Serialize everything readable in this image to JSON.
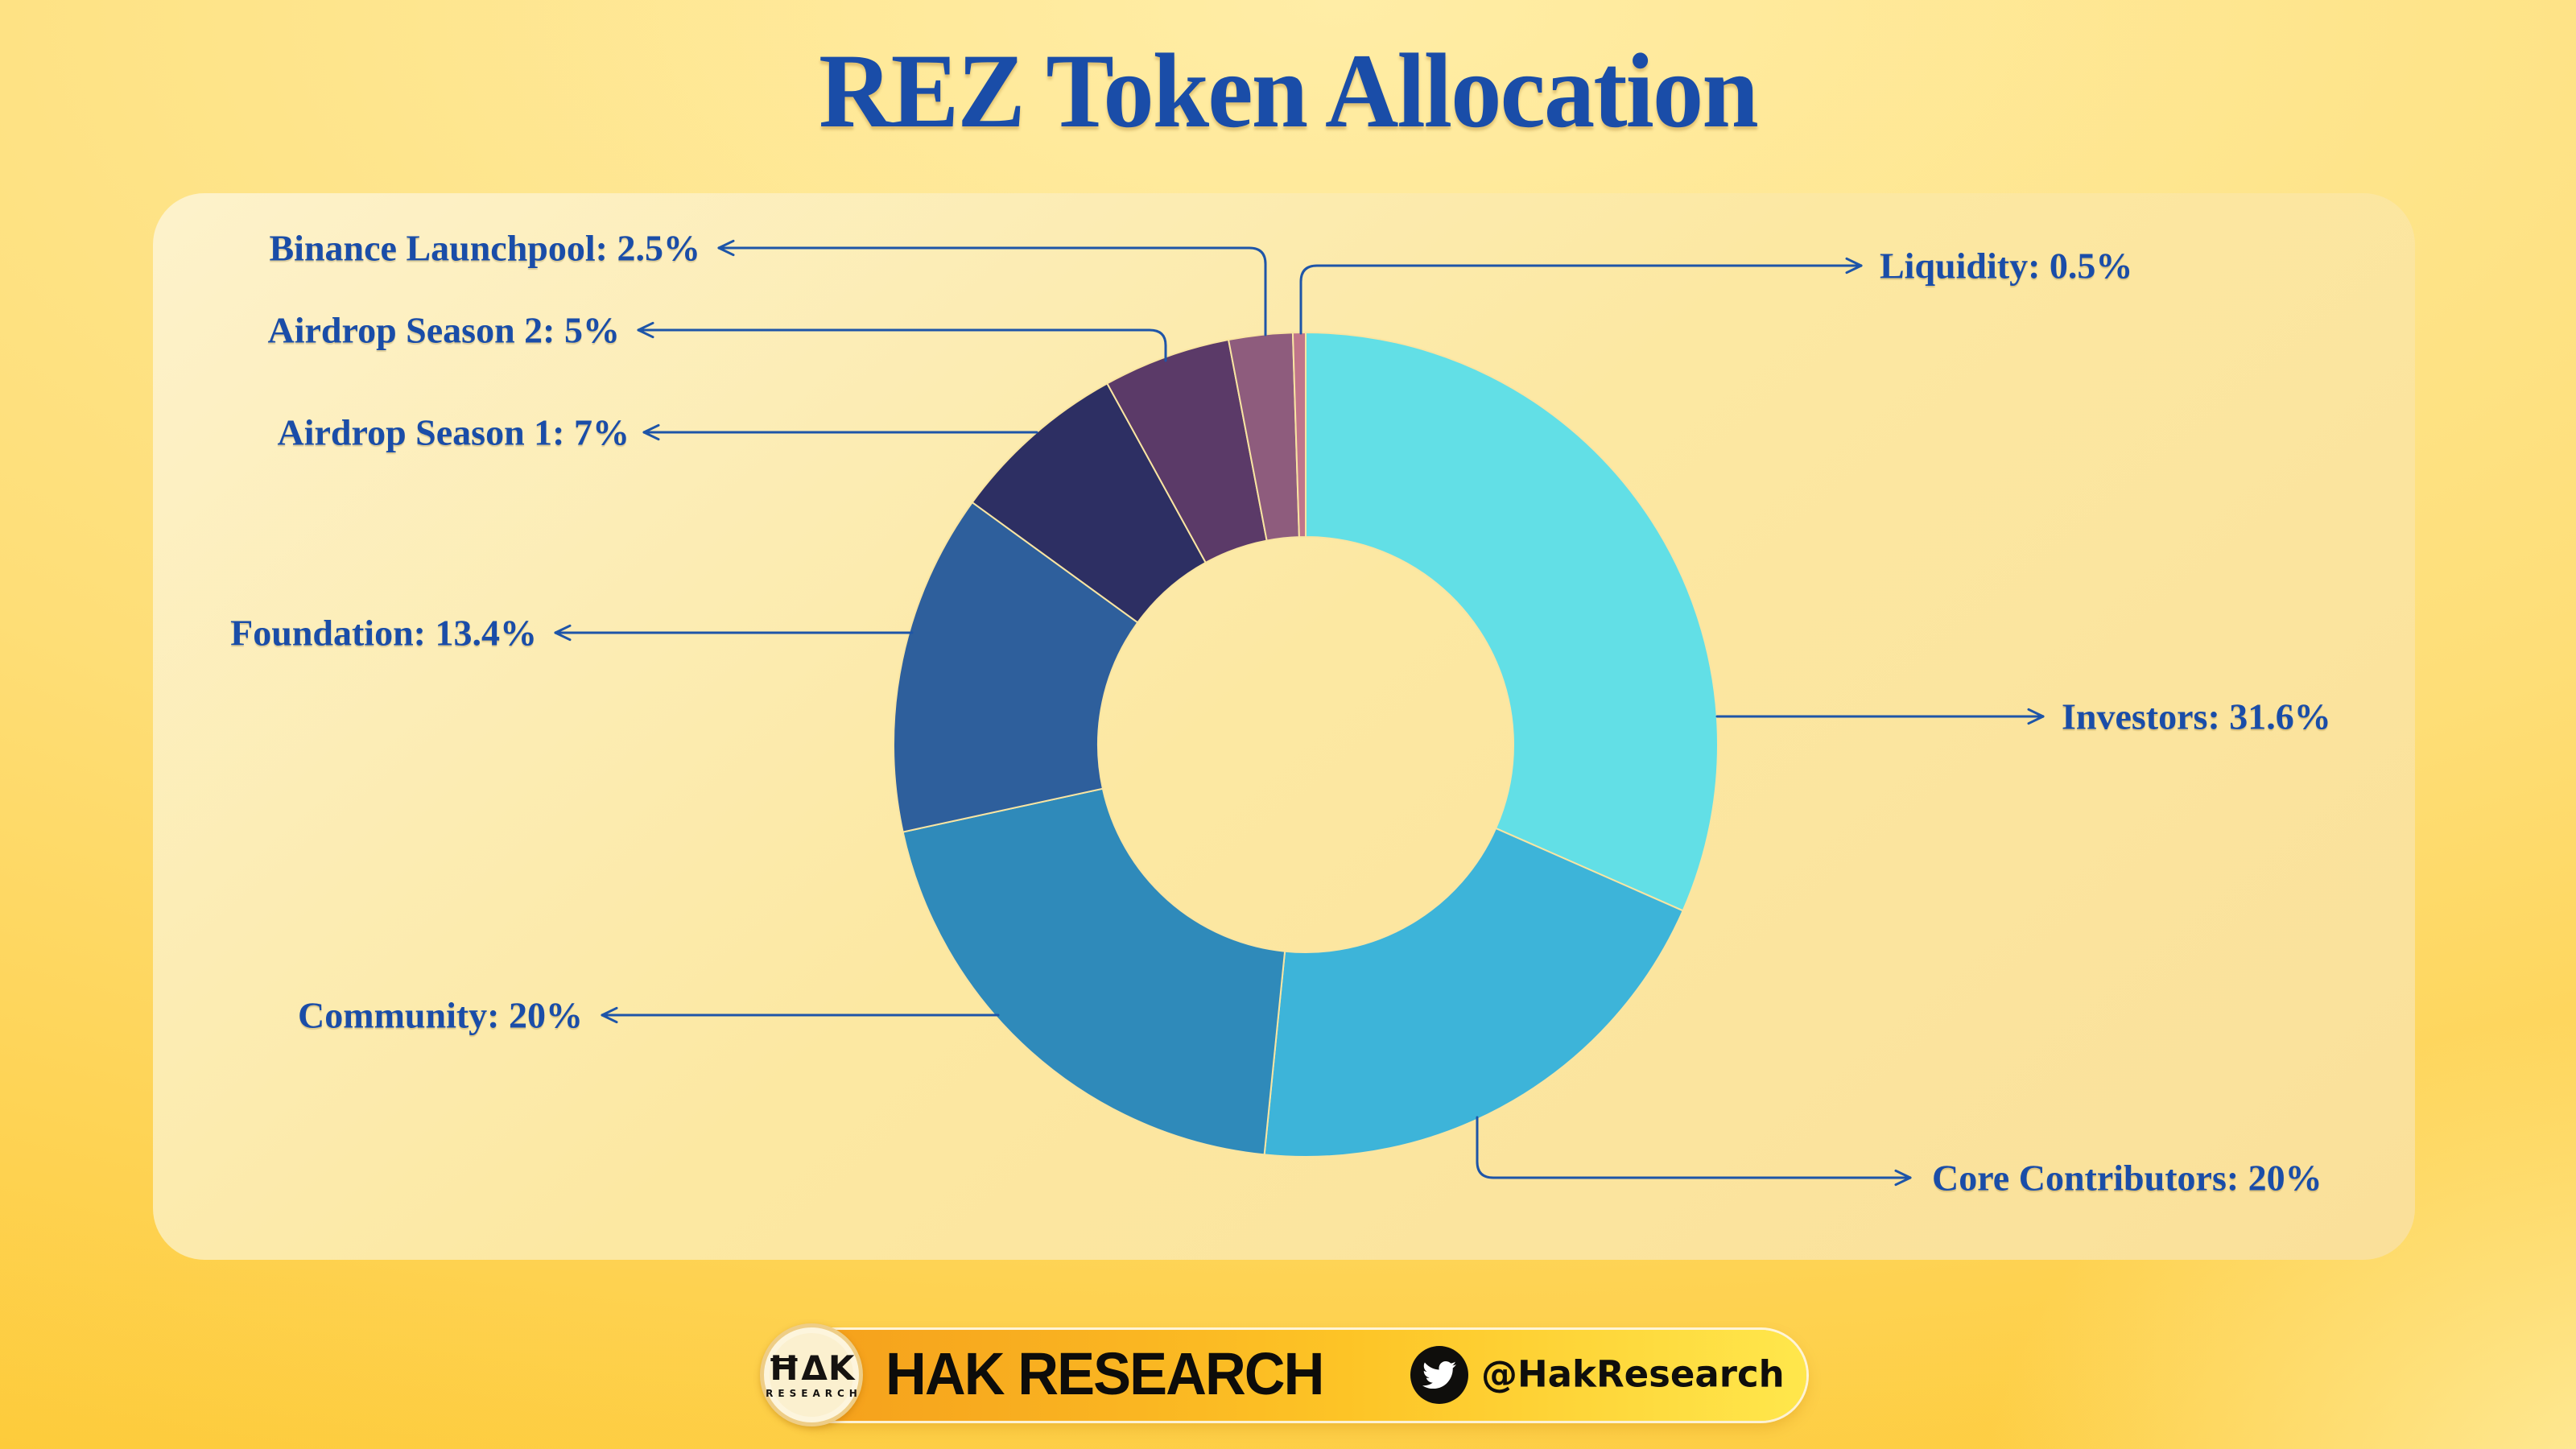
{
  "title": "REZ Token Allocation",
  "colors": {
    "label_blue": "#1a4da8",
    "line_blue": "#1e55a8",
    "card_yellow": "#fce8a2",
    "background_gold": "#fdc527"
  },
  "chart_data": {
    "type": "pie",
    "donut": true,
    "title": "REZ Token Allocation",
    "unit": "%",
    "start_angle_deg": 0,
    "direction": "clockwise",
    "legend": "none",
    "categories": [
      "Investors",
      "Core Contributors",
      "Community",
      "Foundation",
      "Airdrop Season 1",
      "Airdrop Season 2",
      "Binance Launchpool",
      "Liquidity"
    ],
    "values": [
      31.6,
      20,
      20,
      13.4,
      7,
      5,
      2.5,
      0.5
    ],
    "colors": [
      "#62dfe6",
      "#3db4d9",
      "#2f8aba",
      "#2e5f9c",
      "#2d2f63",
      "#5b3a68",
      "#8e5c7d",
      "#c0758a"
    ],
    "labels": [
      "Investors: 31.6%",
      "Core Contributors: 20%",
      "Community: 20%",
      "Foundation: 13.4%",
      "Airdrop Season 1: 7%",
      "Airdrop Season 2: 5%",
      "Binance Launchpool: 2.5%",
      "Liquidity: 0.5%"
    ]
  },
  "footer": {
    "brand": "HAK RESEARCH",
    "logo_monogram": "ĦΔK",
    "logo_caption": "RESEARCH",
    "twitter_handle": "@HakResearch"
  }
}
